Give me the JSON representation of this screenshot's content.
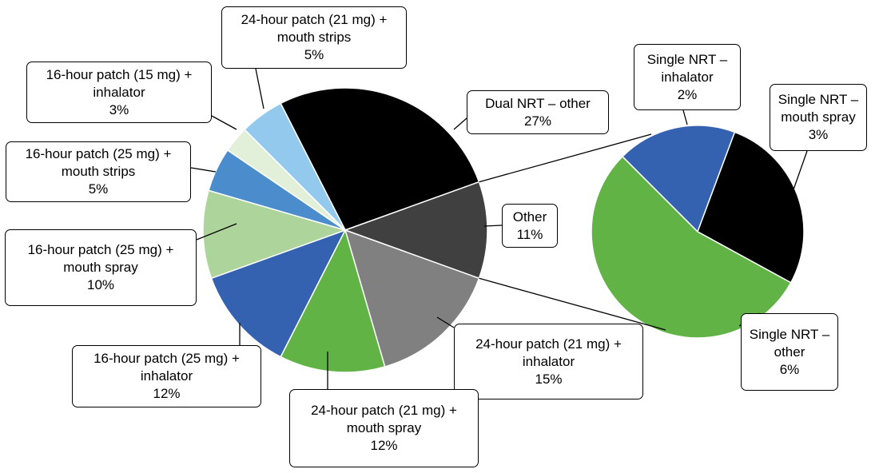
{
  "chart_data": [
    {
      "type": "pie",
      "categories": [
        "Dual NRT – other",
        "Other",
        "24-hour patch (21 mg) + inhalator",
        "24-hour patch (21 mg) + mouth spray",
        "16-hour patch (25 mg) + inhalator",
        "16-hour patch (25 mg) + mouth spray",
        "16-hour patch (25 mg) + mouth strips",
        "16-hour patch (15 mg) + inhalator",
        "24-hour patch (21 mg) + mouth strips"
      ],
      "values": [
        27,
        11,
        15,
        12,
        12,
        10,
        5,
        3,
        5
      ],
      "value_labels": [
        "27%",
        "11%",
        "15%",
        "12%",
        "12%",
        "10%",
        "5%",
        "3%",
        "5%"
      ],
      "colors": [
        "#000000",
        "#404040",
        "#808080",
        "#62b346",
        "#3461b0",
        "#add49a",
        "#4a8ccc",
        "#e2f0d9",
        "#93c9ec"
      ]
    },
    {
      "type": "pie",
      "categories": [
        "Single NRT – inhalator",
        "Single NRT – mouth spray",
        "Single NRT – other"
      ],
      "values": [
        2,
        3,
        6
      ],
      "value_labels": [
        "2%",
        "3%",
        "6%"
      ],
      "colors": [
        "#3461b0",
        "#000000",
        "#62b346"
      ]
    }
  ]
}
